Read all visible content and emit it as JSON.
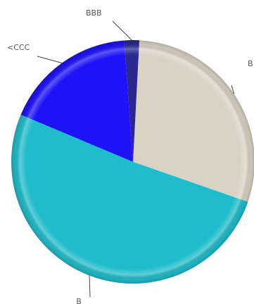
{
  "chart_data": {
    "type": "pie",
    "title": "",
    "slices": [
      {
        "label": "B",
        "value": 29.5,
        "color": "#d9d3c3"
      },
      {
        "label": "B",
        "value": 51.0,
        "color": "#20bccb"
      },
      {
        "label": "<CCC",
        "value": 17.5,
        "color": "#1f12f7"
      },
      {
        "label": "BBB",
        "value": 2.0,
        "color": "#2a2a8e"
      }
    ],
    "legend": "none",
    "data_labels": "outside-with-leader-lines"
  }
}
